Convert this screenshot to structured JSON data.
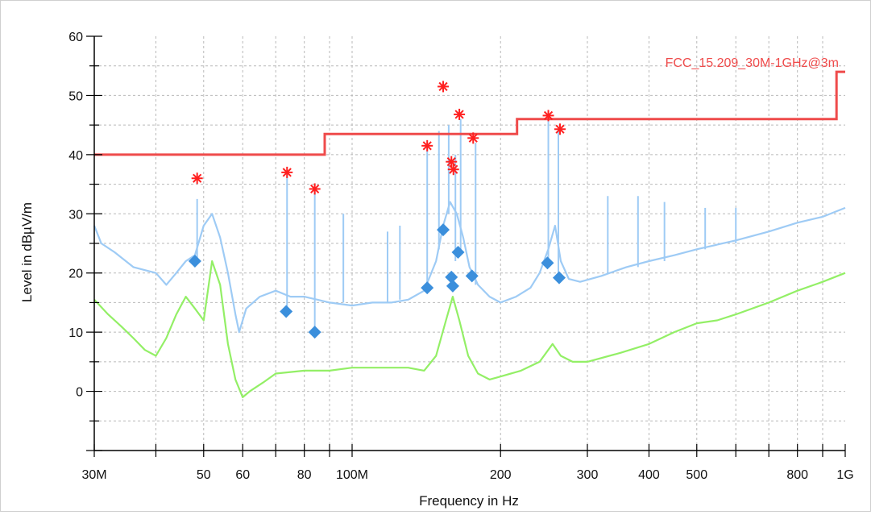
{
  "chart_data": {
    "type": "line",
    "xlabel": "Frequency in Hz",
    "ylabel": "Level in dBµV/m",
    "x_scale": "log",
    "xlim": [
      30000000,
      1000000000
    ],
    "ylim": [
      -10,
      60
    ],
    "grid": true,
    "x_ticks": [
      {
        "value": 30000000,
        "label": "30M"
      },
      {
        "value": 50000000,
        "label": "50"
      },
      {
        "value": 60000000,
        "label": "60"
      },
      {
        "value": 80000000,
        "label": "80"
      },
      {
        "value": 100000000,
        "label": "100M"
      },
      {
        "value": 200000000,
        "label": "200"
      },
      {
        "value": 300000000,
        "label": "300"
      },
      {
        "value": 400000000,
        "label": "400"
      },
      {
        "value": 500000000,
        "label": "500"
      },
      {
        "value": 800000000,
        "label": "800"
      },
      {
        "value": 1000000000,
        "label": "1G"
      }
    ],
    "y_ticks": [
      {
        "value": 0,
        "label": "0"
      },
      {
        "value": 10,
        "label": "10"
      },
      {
        "value": 20,
        "label": "20"
      },
      {
        "value": 30,
        "label": "30"
      },
      {
        "value": 40,
        "label": "40"
      },
      {
        "value": 50,
        "label": "50"
      },
      {
        "value": 60,
        "label": "60"
      }
    ],
    "limit": {
      "label": "FCC_15.209_30M-1GHz@3m",
      "color": "#ef4b4b",
      "points": [
        [
          30000000,
          40
        ],
        [
          88000000,
          40
        ],
        [
          88000000,
          43.5
        ],
        [
          216000000,
          43.5
        ],
        [
          216000000,
          46
        ],
        [
          960000000,
          46
        ],
        [
          960000000,
          54
        ],
        [
          1000000000,
          54
        ]
      ]
    },
    "series": [
      {
        "color": "#9ecbf5",
        "points": [
          [
            30000000,
            28
          ],
          [
            31000000,
            25
          ],
          [
            33000000,
            23.5
          ],
          [
            36000000,
            21
          ],
          [
            40000000,
            20
          ],
          [
            42000000,
            18
          ],
          [
            44000000,
            20
          ],
          [
            46000000,
            22
          ],
          [
            48000000,
            23
          ],
          [
            50000000,
            28
          ],
          [
            52000000,
            30
          ],
          [
            54000000,
            26
          ],
          [
            56000000,
            20
          ],
          [
            58000000,
            13
          ],
          [
            59000000,
            10
          ],
          [
            61000000,
            14
          ],
          [
            65000000,
            16
          ],
          [
            70000000,
            17
          ],
          [
            75000000,
            16
          ],
          [
            80000000,
            16
          ],
          [
            85000000,
            15.5
          ],
          [
            90000000,
            15
          ],
          [
            100000000,
            14.5
          ],
          [
            110000000,
            15
          ],
          [
            120000000,
            15
          ],
          [
            130000000,
            15.5
          ],
          [
            140000000,
            17
          ],
          [
            148000000,
            22
          ],
          [
            153000000,
            28
          ],
          [
            158000000,
            32
          ],
          [
            163000000,
            30
          ],
          [
            168000000,
            26
          ],
          [
            173000000,
            21
          ],
          [
            180000000,
            18
          ],
          [
            190000000,
            16
          ],
          [
            200000000,
            15
          ],
          [
            215000000,
            16
          ],
          [
            230000000,
            17.5
          ],
          [
            240000000,
            20
          ],
          [
            250000000,
            24
          ],
          [
            258000000,
            28
          ],
          [
            265000000,
            22
          ],
          [
            275000000,
            19
          ],
          [
            290000000,
            18.5
          ],
          [
            320000000,
            19.5
          ],
          [
            360000000,
            21
          ],
          [
            400000000,
            22
          ],
          [
            450000000,
            23
          ],
          [
            500000000,
            24
          ],
          [
            600000000,
            25.5
          ],
          [
            700000000,
            27
          ],
          [
            800000000,
            28.5
          ],
          [
            900000000,
            29.5
          ],
          [
            1000000000,
            31
          ]
        ]
      },
      {
        "color": "#93ef66",
        "points": [
          [
            30000000,
            15.5
          ],
          [
            32000000,
            13
          ],
          [
            34000000,
            11
          ],
          [
            36000000,
            9
          ],
          [
            38000000,
            7
          ],
          [
            40000000,
            6
          ],
          [
            42000000,
            9
          ],
          [
            44000000,
            13
          ],
          [
            46000000,
            16
          ],
          [
            48000000,
            14
          ],
          [
            50000000,
            12
          ],
          [
            52000000,
            22
          ],
          [
            54000000,
            18
          ],
          [
            56000000,
            8
          ],
          [
            58000000,
            2
          ],
          [
            60000000,
            -1
          ],
          [
            62000000,
            0
          ],
          [
            66000000,
            1.5
          ],
          [
            70000000,
            3
          ],
          [
            80000000,
            3.5
          ],
          [
            90000000,
            3.5
          ],
          [
            100000000,
            4
          ],
          [
            110000000,
            4
          ],
          [
            130000000,
            4
          ],
          [
            140000000,
            3.5
          ],
          [
            148000000,
            6
          ],
          [
            155000000,
            12
          ],
          [
            160000000,
            16
          ],
          [
            165000000,
            12
          ],
          [
            172000000,
            6
          ],
          [
            180000000,
            3
          ],
          [
            190000000,
            2
          ],
          [
            200000000,
            2.5
          ],
          [
            220000000,
            3.5
          ],
          [
            240000000,
            5
          ],
          [
            255000000,
            8
          ],
          [
            265000000,
            6
          ],
          [
            280000000,
            5
          ],
          [
            300000000,
            5
          ],
          [
            350000000,
            6.5
          ],
          [
            400000000,
            8
          ],
          [
            450000000,
            10
          ],
          [
            500000000,
            11.5
          ],
          [
            550000000,
            12
          ],
          [
            600000000,
            13
          ],
          [
            700000000,
            15
          ],
          [
            800000000,
            17
          ],
          [
            900000000,
            18.5
          ],
          [
            1000000000,
            20
          ]
        ]
      }
    ],
    "spikes": [
      {
        "x": 48500000,
        "top": 32.5,
        "bottom": 22
      },
      {
        "x": 73800000,
        "top": 37,
        "bottom": 13.5
      },
      {
        "x": 84000000,
        "top": 34,
        "bottom": 10
      },
      {
        "x": 96000000,
        "top": 30,
        "bottom": 15
      },
      {
        "x": 118000000,
        "top": 27,
        "bottom": 15
      },
      {
        "x": 125000000,
        "top": 28,
        "bottom": 15.5
      },
      {
        "x": 142000000,
        "top": 41,
        "bottom": 17
      },
      {
        "x": 150000000,
        "top": 44,
        "bottom": 24
      },
      {
        "x": 157000000,
        "top": 45,
        "bottom": 30
      },
      {
        "x": 162000000,
        "top": 40,
        "bottom": 22
      },
      {
        "x": 166000000,
        "top": 46,
        "bottom": 24
      },
      {
        "x": 178000000,
        "top": 42,
        "bottom": 18
      },
      {
        "x": 250000000,
        "top": 46,
        "bottom": 22
      },
      {
        "x": 262000000,
        "top": 44,
        "bottom": 20
      },
      {
        "x": 330000000,
        "top": 33,
        "bottom": 20
      },
      {
        "x": 380000000,
        "top": 33,
        "bottom": 21
      },
      {
        "x": 430000000,
        "top": 32,
        "bottom": 22
      },
      {
        "x": 520000000,
        "top": 31,
        "bottom": 24
      },
      {
        "x": 600000000,
        "top": 31,
        "bottom": 25
      }
    ],
    "qp_markers": {
      "color": "#3b8fdc",
      "points": [
        [
          48000000,
          22
        ],
        [
          73500000,
          13.5
        ],
        [
          84000000,
          10
        ],
        [
          142000000,
          17.5
        ],
        [
          153000000,
          27.3
        ],
        [
          159000000,
          19.3
        ],
        [
          160000000,
          17.8
        ],
        [
          164000000,
          23.5
        ],
        [
          175000000,
          19.5
        ],
        [
          249000000,
          21.7
        ],
        [
          263000000,
          19.2
        ]
      ]
    },
    "peak_markers": {
      "color": "#ff2020",
      "points": [
        [
          48500000,
          36
        ],
        [
          73800000,
          37
        ],
        [
          84000000,
          34.2
        ],
        [
          142000000,
          41.5
        ],
        [
          153000000,
          51.5
        ],
        [
          159000000,
          38.8
        ],
        [
          160500000,
          37.5
        ],
        [
          165000000,
          46.8
        ],
        [
          176000000,
          42.8
        ],
        [
          250000000,
          46.6
        ],
        [
          264000000,
          44.3
        ]
      ]
    }
  }
}
